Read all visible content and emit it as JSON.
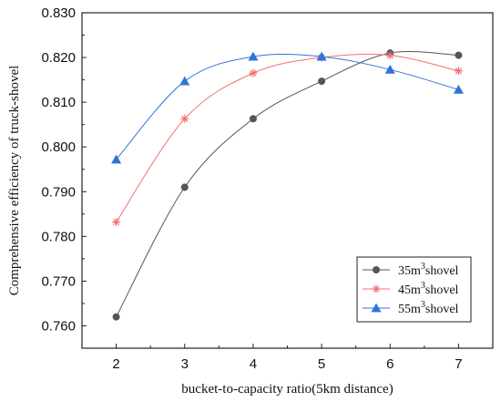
{
  "chart_data": {
    "type": "line",
    "title": "",
    "xlabel": "bucket-to-capacity ratio(5km distance)",
    "ylabel": "Comprehensive efficiency of truck-shovel",
    "x": [
      2,
      3,
      4,
      5,
      6,
      7
    ],
    "xlim": [
      1.5,
      7.5
    ],
    "ylim": [
      0.755,
      0.83
    ],
    "xticks": [
      "2",
      "3",
      "4",
      "5",
      "6",
      "7"
    ],
    "yticks": [
      "0.760",
      "0.770",
      "0.780",
      "0.790",
      "0.800",
      "0.810",
      "0.820",
      "0.830"
    ],
    "grid": false,
    "legend_position": "bottom-right",
    "series": [
      {
        "name": "35m³shovel",
        "name_base": "35m",
        "name_sup": "3",
        "name_rest": "shovel",
        "marker": "circle",
        "color": "#555555",
        "values": [
          0.762,
          0.791,
          0.8063,
          0.8147,
          0.821,
          0.8205
        ]
      },
      {
        "name": "45m³shovel",
        "name_base": "45m",
        "name_sup": "3",
        "name_rest": "shovel",
        "marker": "asterisk",
        "color": "#f07070",
        "values": [
          0.7832,
          0.8063,
          0.8165,
          0.82,
          0.8205,
          0.817
        ]
      },
      {
        "name": "55m³shovel",
        "name_base": "55m",
        "name_sup": "3",
        "name_rest": "shovel",
        "marker": "triangle",
        "color": "#2f74d8",
        "values": [
          0.7972,
          0.8147,
          0.8202,
          0.8202,
          0.8173,
          0.8128
        ]
      }
    ]
  }
}
